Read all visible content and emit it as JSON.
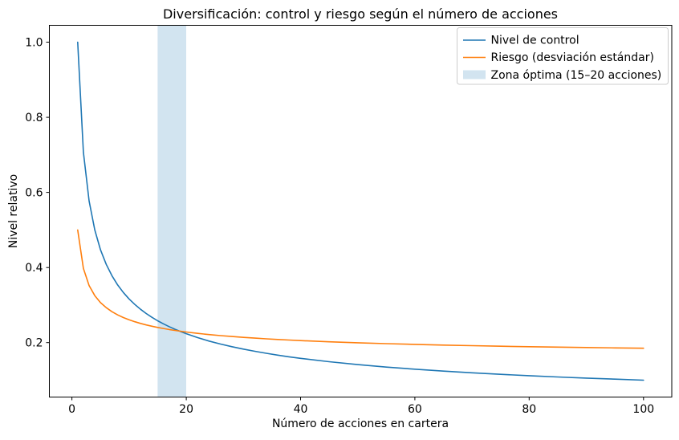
{
  "figure": {
    "background": "#ffffff",
    "text_color": "#000000",
    "legend_border_color": "#cccccc"
  },
  "chart_data": {
    "type": "line",
    "title": "Diversificación: control y riesgo según el número de acciones",
    "xlabel": "Número de acciones en cartera",
    "ylabel": "Nivel relativo",
    "xlim": [
      -3.95,
      104.95
    ],
    "ylim": [
      0.055,
      1.045
    ],
    "xtick_values": [
      0,
      20,
      40,
      60,
      80,
      100
    ],
    "xtick_labels": [
      "0",
      "20",
      "40",
      "60",
      "80",
      "100"
    ],
    "ytick_values": [
      0.2,
      0.4,
      0.6,
      0.8,
      1.0
    ],
    "ytick_labels": [
      "0.2",
      "0.4",
      "0.6",
      "0.8",
      "1.0"
    ],
    "grid": false,
    "legend_position": "upper right",
    "x": [
      1,
      2,
      3,
      4,
      5,
      6,
      7,
      8,
      9,
      10,
      11,
      12,
      13,
      14,
      15,
      16,
      17,
      18,
      19,
      20,
      22,
      24,
      26,
      28,
      30,
      32,
      34,
      36,
      38,
      40,
      45,
      50,
      55,
      60,
      65,
      70,
      75,
      80,
      85,
      90,
      95,
      100
    ],
    "series": [
      {
        "name": "Nivel de control",
        "color": "#1f77b4",
        "formula": "1/sqrt(n)",
        "values": [
          1.0,
          0.7071,
          0.5774,
          0.5,
          0.4472,
          0.4082,
          0.378,
          0.3536,
          0.3333,
          0.3162,
          0.3015,
          0.2887,
          0.2774,
          0.2673,
          0.2582,
          0.25,
          0.2425,
          0.2357,
          0.2294,
          0.2236,
          0.2132,
          0.2041,
          0.1961,
          0.189,
          0.1826,
          0.1768,
          0.1715,
          0.1667,
          0.1622,
          0.1581,
          0.1491,
          0.1414,
          0.1348,
          0.1291,
          0.124,
          0.1195,
          0.1155,
          0.1118,
          0.1085,
          0.1054,
          0.1026,
          0.1
        ]
      },
      {
        "name": "Riesgo (desviación estándar)",
        "color": "#ff7f0e",
        "formula": "0.15 + 0.35/sqrt(n)",
        "values": [
          0.5,
          0.3975,
          0.3521,
          0.325,
          0.3065,
          0.2929,
          0.2823,
          0.2737,
          0.2667,
          0.2607,
          0.2555,
          0.251,
          0.2471,
          0.2436,
          0.2404,
          0.2375,
          0.2349,
          0.2325,
          0.2303,
          0.2283,
          0.2246,
          0.2214,
          0.2186,
          0.2162,
          0.2139,
          0.2119,
          0.21,
          0.2083,
          0.2068,
          0.2053,
          0.2022,
          0.1995,
          0.1972,
          0.1952,
          0.1934,
          0.1918,
          0.1904,
          0.1891,
          0.188,
          0.1869,
          0.1859,
          0.185
        ]
      }
    ],
    "band": {
      "label": "Zona óptima (15–20 acciones)",
      "x0": 15,
      "x1": 20,
      "color": "#1f77b4",
      "alpha": 0.2
    }
  }
}
